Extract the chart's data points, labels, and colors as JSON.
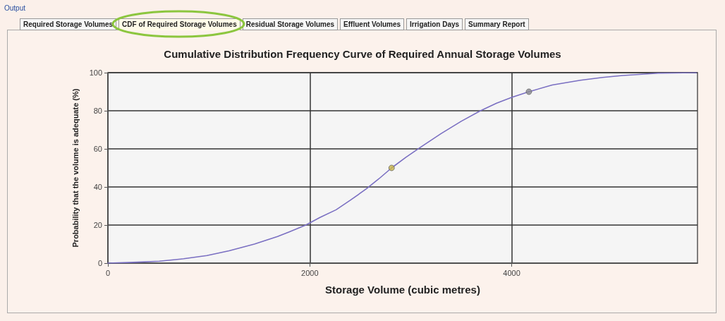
{
  "chart_data": {
    "type": "line",
    "title": "Cumulative Distribution Frequency Curve of Required Annual Storage Volumes",
    "xlabel": "Storage Volume (cubic metres)",
    "ylabel": "Probability that the volume is adequate (%)",
    "annotations": [
      "Output",
      "Required Storage Volumes",
      "CDF of Required Storage Volumes",
      "Residual Storage Volumes",
      "Effluent Volumes",
      "Irrigation Days",
      "Summary Report"
    ],
    "series": [
      {
        "color": "#7a6fc2",
        "marker": "none",
        "x": [
          0,
          250,
          510,
          750,
          980,
          1200,
          1450,
          1680,
          1800,
          1960,
          2100,
          2260,
          2400,
          2560,
          2700,
          2810,
          2950,
          3100,
          3300,
          3500,
          3690,
          3850,
          4000,
          4170,
          4400,
          4680,
          4900,
          5100,
          5450,
          5830
        ],
        "values": [
          0,
          0.4,
          1,
          2.3,
          4,
          6.5,
          10,
          14,
          16.5,
          20,
          24,
          28,
          33,
          39,
          45,
          50,
          55.5,
          61,
          68,
          74.5,
          80,
          84,
          87,
          90,
          93.5,
          96,
          97.5,
          98.5,
          99.7,
          100
        ]
      },
      {
        "type": "scatter",
        "marker": "circle",
        "x": [
          2810,
          4170
        ],
        "values": [
          50,
          90
        ],
        "colors": [
          "#c9b547",
          "#8a8a90"
        ]
      }
    ],
    "xlim": [
      0,
      5840
    ],
    "xticks": [
      0,
      2000,
      4000
    ],
    "ylim": [
      0,
      100
    ],
    "yticks": [
      0,
      20,
      40,
      60,
      80,
      100
    ],
    "grid": true
  }
}
